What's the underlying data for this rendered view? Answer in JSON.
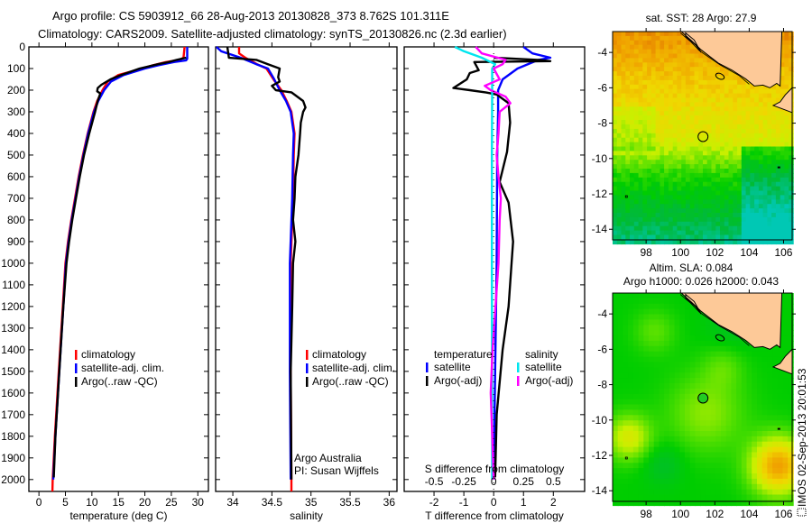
{
  "header": {
    "title_line1": "Argo profile: CS 5903912_66 28-Aug-2013 20130828_373 8.762S 101.311E",
    "title_line2": "Climatology: CARS2009. Satellite-adjusted climatology: synTS_20130826.nc (2.3d earlier)"
  },
  "depth_axis": {
    "ticks": [
      "0",
      "100",
      "200",
      "300",
      "400",
      "500",
      "600",
      "700",
      "800",
      "900",
      "1000",
      "1100",
      "1200",
      "1300",
      "1400",
      "1500",
      "1600",
      "1700",
      "1800",
      "1900",
      "2000"
    ],
    "ylim": [
      0,
      2055
    ]
  },
  "colors": {
    "climatology": "#ff0000",
    "satellite": "#0000ff",
    "argo": "#000000",
    "sal_satellite": "#00e5ee",
    "sal_argo": "#ff00ff",
    "land": "#fdc998"
  },
  "chart_data": [
    {
      "type": "line",
      "id": "temperature",
      "xlabel": "temperature (deg C)",
      "ylabel": "depth",
      "xlim": [
        -1.9,
        32
      ],
      "xticks": [
        0,
        5,
        10,
        15,
        20,
        25,
        30
      ],
      "xtick_labels": [
        "0",
        "5",
        "10",
        "15",
        "20",
        "25",
        "30"
      ],
      "legend": [
        "climatology",
        "satellite-adj. clim.",
        "Argo(..raw -QC)"
      ],
      "legend_placement": "center",
      "series": [
        {
          "name": "climatology",
          "color": "#ff0000",
          "depth": [
            0,
            50,
            60,
            70,
            85,
            100,
            130,
            160,
            200,
            250,
            300,
            400,
            500,
            600,
            700,
            800,
            900,
            1000,
            1200,
            1400,
            1600,
            1800,
            2000,
            2055
          ],
          "values": [
            27.5,
            27.3,
            26.5,
            24,
            21.5,
            19.5,
            15,
            13,
            12,
            11,
            10.3,
            9.2,
            8.3,
            7.5,
            6.8,
            6.1,
            5.5,
            5.0,
            4.5,
            4.0,
            3.5,
            3.0,
            2.6,
            2.55
          ]
        },
        {
          "name": "satellite-adj. clim.",
          "color": "#0000ff",
          "depth": [
            0,
            55,
            62,
            70,
            85,
            100,
            130,
            160,
            200,
            250,
            300,
            400,
            500,
            600,
            700,
            800,
            900,
            1000,
            1200,
            1400,
            1600,
            1800,
            2000
          ],
          "values": [
            28,
            28,
            27.8,
            25.5,
            22.5,
            20,
            16,
            13.6,
            12.3,
            11.2,
            10.4,
            9.3,
            8.4,
            7.6,
            6.9,
            6.2,
            5.6,
            5.1,
            4.6,
            4.1,
            3.6,
            3.1,
            2.7
          ]
        },
        {
          "name": "Argo(..raw -QC)",
          "color": "#000000",
          "depth": [
            50,
            60,
            70,
            80,
            100,
            130,
            150,
            175,
            190,
            205,
            215,
            250,
            300,
            400,
            500,
            600,
            700,
            800,
            900,
            1000,
            1200,
            1400,
            1600,
            1800,
            1990
          ],
          "values": [
            27.8,
            26,
            24.5,
            22.5,
            19,
            15.5,
            13.5,
            11.8,
            11.1,
            11.0,
            11.6,
            11.1,
            10.6,
            9.5,
            8.5,
            7.7,
            7.0,
            6.3,
            5.7,
            5.2,
            4.6,
            4.1,
            3.6,
            3.1,
            2.8
          ]
        }
      ]
    },
    {
      "type": "line",
      "id": "salinity",
      "xlabel": "salinity",
      "ylabel": "depth",
      "xlim": [
        33.78,
        36.1
      ],
      "xticks": [
        34,
        34.5,
        35,
        35.5,
        36
      ],
      "xtick_labels": [
        "34",
        "34.5",
        "35",
        "35.5",
        "36"
      ],
      "legend": [
        "climatology",
        "satellite-adj. clim.",
        "Argo(..raw -QC)"
      ],
      "annotation": [
        "Argo Australia",
        "PI: Susan Wijffels"
      ],
      "series": [
        {
          "name": "climatology",
          "color": "#ff0000",
          "depth": [
            0,
            30,
            50,
            80,
            100,
            150,
            200,
            250,
            300,
            400,
            500,
            700,
            1000,
            1500,
            2000,
            2055
          ],
          "values": [
            34.08,
            34.08,
            34.16,
            34.31,
            34.43,
            34.52,
            34.62,
            34.69,
            34.75,
            34.79,
            34.78,
            34.77,
            34.74,
            34.74,
            34.75,
            34.75
          ]
        },
        {
          "name": "satellite-adj. clim.",
          "color": "#0000ff",
          "depth": [
            0,
            20,
            50,
            80,
            100,
            150,
            200,
            250,
            300,
            400,
            500,
            700,
            1000,
            1500,
            2000
          ],
          "values": [
            33.79,
            33.85,
            34.1,
            34.3,
            34.45,
            34.53,
            34.6,
            34.68,
            34.74,
            34.78,
            34.77,
            34.76,
            34.73,
            34.73,
            34.74
          ]
        },
        {
          "name": "Argo(..raw -QC)",
          "color": "#000000",
          "depth": [
            0,
            50,
            60,
            80,
            100,
            140,
            160,
            180,
            200,
            210,
            250,
            280,
            300,
            350,
            400,
            500,
            600,
            700,
            800,
            900,
            1000,
            1200,
            1500,
            2000
          ],
          "values": [
            33.93,
            33.95,
            34.3,
            34.45,
            34.6,
            34.58,
            34.6,
            34.5,
            34.55,
            34.75,
            34.9,
            34.93,
            34.9,
            34.87,
            34.86,
            34.84,
            34.8,
            34.79,
            34.77,
            34.8,
            34.77,
            34.76,
            34.74,
            34.75
          ]
        }
      ]
    },
    {
      "type": "line",
      "id": "differences",
      "xlabel": "T difference from climatology",
      "xlabel_top": "S difference from climatology",
      "ylabel": "depth",
      "xlim": [
        -3.0,
        3.05
      ],
      "xticks": [
        -2,
        -1,
        0,
        1,
        2
      ],
      "xtick_labels": [
        "-2",
        "-1",
        "0",
        "1",
        "2"
      ],
      "s_ticks": [
        -0.5,
        -0.25,
        0,
        0.25,
        0.5
      ],
      "s_tick_labels": [
        "-0.5",
        "-0.25",
        "0",
        "0.25",
        "0.5"
      ],
      "s_to_t_scale": 4,
      "legend": {
        "temperature_title": "temperature",
        "salinity_title": "salinity",
        "t_satellite": "satellite",
        "t_argo": "Argo(-adj)",
        "s_satellite": "satellite",
        "s_argo": "Argo(-adj)"
      },
      "series": [
        {
          "name": "temperature satellite",
          "unit": "T",
          "color": "#0000ff",
          "depth": [
            0,
            30,
            50,
            60,
            100,
            150,
            200,
            300,
            500,
            1000,
            1500,
            2000
          ],
          "values": [
            1.0,
            1.3,
            1.9,
            1.5,
            0.8,
            0.3,
            0.15,
            0.15,
            0.12,
            0.1,
            0.05,
            0.0
          ]
        },
        {
          "name": "temperature Argo(-adj)",
          "unit": "T",
          "color": "#000000",
          "depth": [
            50,
            60,
            66,
            70,
            108,
            121,
            150,
            190,
            200,
            211,
            220,
            260,
            350,
            485,
            625,
            720,
            900,
            1000,
            1200,
            1400,
            1700,
            1990
          ],
          "values": [
            0.0,
            1.5,
            1.9,
            -0.65,
            -0.5,
            -0.8,
            -0.9,
            -1.35,
            -0.8,
            -0.25,
            0.1,
            0.5,
            0.55,
            0.45,
            0.2,
            0.5,
            0.65,
            0.6,
            0.5,
            0.3,
            0.1,
            0.05
          ]
        },
        {
          "name": "salinity satellite",
          "unit": "S",
          "color": "#00e5ee",
          "depth": [
            0,
            20,
            50,
            80,
            100,
            200,
            500,
            1000,
            2000
          ],
          "values": [
            -0.325,
            -0.25,
            -0.1,
            0.0125,
            -0.0125,
            -0.0125,
            -0.015,
            -0.015,
            -0.0125
          ]
        },
        {
          "name": "salinity Argo(-adj)",
          "unit": "S",
          "color": "#ff00ff",
          "depth": [
            0,
            30,
            60,
            80,
            100,
            150,
            180,
            200,
            230,
            260,
            300,
            400,
            500,
            600,
            700,
            800,
            1000,
            1400,
            1600,
            1800,
            2000
          ],
          "values": [
            -0.15,
            -0.1,
            0.1,
            0.075,
            0.0,
            0.05,
            -0.075,
            -0.025,
            0.1,
            0.14,
            0.05,
            0.04,
            0.025,
            0.04,
            0.06,
            0.05,
            0.04,
            -0.01,
            -0.025,
            -0.012,
            0.0
          ]
        }
      ]
    }
  ],
  "maps": [
    {
      "id": "sst",
      "title": "sat. SST: 28 Argo: 27.9",
      "lon_range": [
        96.05,
        106.5
      ],
      "lat_range": [
        -14.6,
        -2.82
      ],
      "lon_ticks": [
        "98",
        "100",
        "102",
        "104",
        "106"
      ],
      "lat_ticks": [
        "-4",
        "-6",
        "-8",
        "-10",
        "-12",
        "-14"
      ],
      "argo_lon": 101.311,
      "argo_lat": -8.762
    },
    {
      "id": "sla",
      "title": "Altim. SLA: 0.084",
      "subtitle": "Argo h1000: 0.026 h2000: 0.043",
      "lon_range": [
        96.05,
        106.5
      ],
      "lat_range": [
        -14.6,
        -2.82
      ],
      "lon_ticks": [
        "98",
        "100",
        "102",
        "104",
        "106"
      ],
      "lat_ticks": [
        "-4",
        "-6",
        "-8",
        "-10",
        "-12",
        "-14"
      ],
      "argo_lon": 101.311,
      "argo_lat": -8.762
    }
  ],
  "footer": {
    "imos_stamp": "IMOS 02-Sep-2013 20:01:53"
  }
}
